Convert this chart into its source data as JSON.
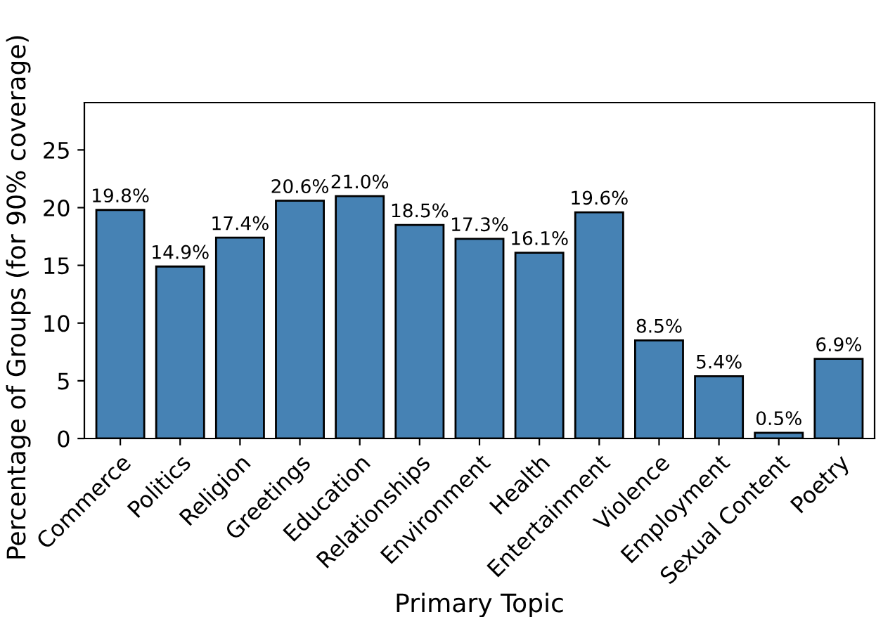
{
  "chart_data": {
    "type": "bar",
    "xlabel": "Primary Topic",
    "ylabel": "Percentage of Groups (for 90% coverage)",
    "categories": [
      "Commerce",
      "Politics",
      "Religion",
      "Greetings",
      "Education",
      "Relationships",
      "Environment",
      "Health",
      "Entertainment",
      "Violence",
      "Employment",
      "Sexual Content",
      "Poetry"
    ],
    "values": [
      19.8,
      14.9,
      17.4,
      20.6,
      21.0,
      18.5,
      17.3,
      16.1,
      19.6,
      8.5,
      5.4,
      0.5,
      6.9
    ],
    "value_labels": [
      "19.8%",
      "14.9%",
      "17.4%",
      "20.6%",
      "21.0%",
      "18.5%",
      "17.3%",
      "16.1%",
      "19.6%",
      "8.5%",
      "5.4%",
      "0.5%",
      "6.9%"
    ],
    "color": "#4682b4",
    "ylim": [
      0,
      29.1
    ],
    "yticks": [
      0,
      5,
      10,
      15,
      20,
      25
    ],
    "grid": false,
    "legend": false
  }
}
